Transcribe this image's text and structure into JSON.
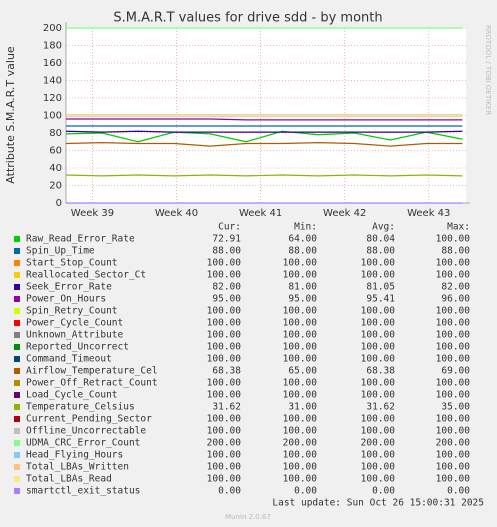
{
  "chart_data": {
    "type": "line",
    "title": "S.M.A.R.T values for drive sdd - by month",
    "y_label": "Attribute S.M.A.R.T value",
    "watermark": "RRDTOOL / TOBI OETIKER",
    "x": [
      0,
      3,
      6,
      9,
      12,
      15,
      18,
      21,
      24,
      27,
      30,
      33
    ],
    "xlim": [
      0,
      33.3
    ],
    "xticks": [
      {
        "value": 2.2,
        "label": "Week 39"
      },
      {
        "value": 9.2,
        "label": "Week 40"
      },
      {
        "value": 16.2,
        "label": "Week 41"
      },
      {
        "value": 23.2,
        "label": "Week 42"
      },
      {
        "value": 30.2,
        "label": "Week 43"
      }
    ],
    "ylim": [
      0,
      200
    ],
    "yticks": [
      0,
      20,
      40,
      60,
      80,
      100,
      120,
      140,
      160,
      180,
      200
    ],
    "grid": true,
    "series": [
      {
        "name": "Raw_Read_Error_Rate",
        "color": "#00cc00",
        "values": [
          79,
          80,
          70,
          81,
          79,
          70,
          82,
          78,
          80,
          72,
          81,
          73
        ]
      },
      {
        "name": "Spin_Up_Time",
        "color": "#0066b3",
        "values": [
          88,
          88,
          88,
          88,
          88,
          88,
          88,
          88,
          88,
          88,
          88,
          88
        ]
      },
      {
        "name": "Start_Stop_Count",
        "color": "#ff8000",
        "values": [
          100,
          100,
          100,
          100,
          100,
          100,
          100,
          100,
          100,
          100,
          100,
          100
        ]
      },
      {
        "name": "Reallocated_Sector_Ct",
        "color": "#ffcc00",
        "values": [
          100,
          100,
          100,
          100,
          100,
          100,
          100,
          100,
          100,
          100,
          100,
          100
        ]
      },
      {
        "name": "Seek_Error_Rate",
        "color": "#330099",
        "values": [
          82,
          81,
          82,
          81,
          81,
          81,
          81,
          81,
          81,
          81,
          81,
          82
        ]
      },
      {
        "name": "Power_On_Hours",
        "color": "#990099",
        "values": [
          96,
          96,
          96,
          96,
          96,
          95,
          95,
          95,
          95,
          95,
          95,
          95
        ]
      },
      {
        "name": "Spin_Retry_Count",
        "color": "#ccff00",
        "values": [
          100,
          100,
          100,
          100,
          100,
          100,
          100,
          100,
          100,
          100,
          100,
          100
        ]
      },
      {
        "name": "Power_Cycle_Count",
        "color": "#ff0000",
        "values": [
          100,
          100,
          100,
          100,
          100,
          100,
          100,
          100,
          100,
          100,
          100,
          100
        ]
      },
      {
        "name": "Unknown_Attribute",
        "color": "#808080",
        "values": [
          100,
          100,
          100,
          100,
          100,
          100,
          100,
          100,
          100,
          100,
          100,
          100
        ]
      },
      {
        "name": "Reported_Uncorrect",
        "color": "#008f00",
        "values": [
          100,
          100,
          100,
          100,
          100,
          100,
          100,
          100,
          100,
          100,
          100,
          100
        ]
      },
      {
        "name": "Command_Timeout",
        "color": "#00487d",
        "values": [
          100,
          100,
          100,
          100,
          100,
          100,
          100,
          100,
          100,
          100,
          100,
          100
        ]
      },
      {
        "name": "Airflow_Temperature_Cel",
        "color": "#b35a00",
        "values": [
          68,
          69,
          68,
          68,
          65,
          68,
          68,
          69,
          68,
          65,
          68,
          68
        ]
      },
      {
        "name": "Power_Off_Retract_Count",
        "color": "#b38f00",
        "values": [
          100,
          100,
          100,
          100,
          100,
          100,
          100,
          100,
          100,
          100,
          100,
          100
        ]
      },
      {
        "name": "Load_Cycle_Count",
        "color": "#6b006b",
        "values": [
          100,
          100,
          100,
          100,
          100,
          100,
          100,
          100,
          100,
          100,
          100,
          100
        ]
      },
      {
        "name": "Temperature_Celsius",
        "color": "#8fb300",
        "values": [
          32,
          31,
          32,
          31,
          32,
          31,
          32,
          31,
          32,
          31,
          32,
          31
        ]
      },
      {
        "name": "Current_Pending_Sector",
        "color": "#b30000",
        "values": [
          100,
          100,
          100,
          100,
          100,
          100,
          100,
          100,
          100,
          100,
          100,
          100
        ]
      },
      {
        "name": "Offline_Uncorrectable",
        "color": "#bebebe",
        "values": [
          100,
          100,
          100,
          100,
          100,
          100,
          100,
          100,
          100,
          100,
          100,
          100
        ]
      },
      {
        "name": "UDMA_CRC_Error_Count",
        "color": "#80ff80",
        "values": [
          200,
          200,
          200,
          200,
          200,
          200,
          200,
          200,
          200,
          200,
          200,
          200
        ]
      },
      {
        "name": "Head_Flying_Hours",
        "color": "#80c9ff",
        "values": [
          100,
          100,
          100,
          100,
          100,
          100,
          100,
          100,
          100,
          100,
          100,
          100
        ]
      },
      {
        "name": "Total_LBAs_Written",
        "color": "#ffc080",
        "values": [
          100,
          100,
          100,
          100,
          100,
          100,
          100,
          100,
          100,
          100,
          100,
          100
        ]
      },
      {
        "name": "Total_LBAs_Read",
        "color": "#ffe680",
        "values": [
          100,
          100,
          100,
          100,
          100,
          100,
          100,
          100,
          100,
          100,
          100,
          100
        ]
      },
      {
        "name": "smartctl_exit_status",
        "color": "#aa80ff",
        "values": [
          0,
          0,
          0,
          0,
          0,
          0,
          0,
          0,
          0,
          0,
          0,
          0
        ]
      }
    ],
    "legend": {
      "columns": [
        "Cur:",
        "Min:",
        "Avg:",
        "Max:"
      ],
      "rows": [
        [
          "72.91",
          "64.00",
          "80.04",
          "100.00"
        ],
        [
          "88.00",
          "88.00",
          "88.00",
          "88.00"
        ],
        [
          "100.00",
          "100.00",
          "100.00",
          "100.00"
        ],
        [
          "100.00",
          "100.00",
          "100.00",
          "100.00"
        ],
        [
          "82.00",
          "81.00",
          "81.05",
          "82.00"
        ],
        [
          "95.00",
          "95.00",
          "95.41",
          "96.00"
        ],
        [
          "100.00",
          "100.00",
          "100.00",
          "100.00"
        ],
        [
          "100.00",
          "100.00",
          "100.00",
          "100.00"
        ],
        [
          "100.00",
          "100.00",
          "100.00",
          "100.00"
        ],
        [
          "100.00",
          "100.00",
          "100.00",
          "100.00"
        ],
        [
          "100.00",
          "100.00",
          "100.00",
          "100.00"
        ],
        [
          "68.38",
          "65.00",
          "68.38",
          "69.00"
        ],
        [
          "100.00",
          "100.00",
          "100.00",
          "100.00"
        ],
        [
          "100.00",
          "100.00",
          "100.00",
          "100.00"
        ],
        [
          "31.62",
          "31.00",
          "31.62",
          "35.00"
        ],
        [
          "100.00",
          "100.00",
          "100.00",
          "100.00"
        ],
        [
          "100.00",
          "100.00",
          "100.00",
          "100.00"
        ],
        [
          "200.00",
          "200.00",
          "200.00",
          "200.00"
        ],
        [
          "100.00",
          "100.00",
          "100.00",
          "100.00"
        ],
        [
          "100.00",
          "100.00",
          "100.00",
          "100.00"
        ],
        [
          "100.00",
          "100.00",
          "100.00",
          "100.00"
        ],
        [
          "0.00",
          "0.00",
          "0.00",
          "0.00"
        ]
      ]
    },
    "last_update": "Last update: Sun Oct 26 15:00:31 2025",
    "footer": "Munin 2.0.67"
  }
}
